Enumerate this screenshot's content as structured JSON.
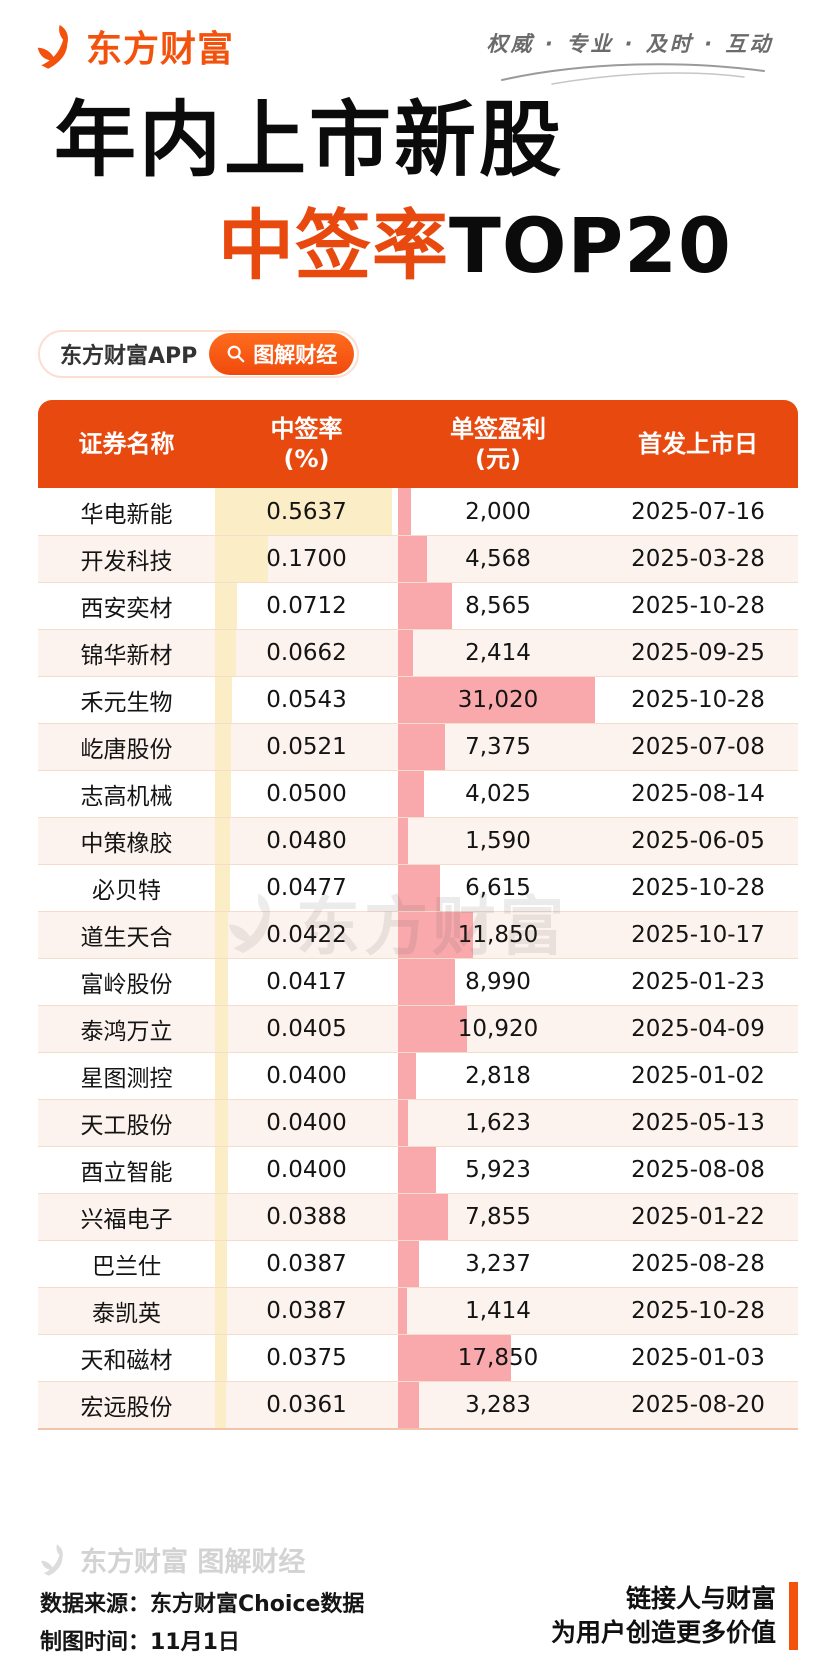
{
  "brand": {
    "logo_text": "东方财富",
    "tagline": "权威 · 专业 · 及时 · 互动"
  },
  "title": {
    "line1": "年内上市新股",
    "line2_highlight": "中签率",
    "line2_rest": "TOP20"
  },
  "app_pill": {
    "app_label": "东方财富APP",
    "button_label": "图解财经"
  },
  "table": {
    "headers": [
      {
        "line1": "证券名称",
        "line2": ""
      },
      {
        "line1": "中签率",
        "line2": "(%)"
      },
      {
        "line1": "单签盈利",
        "line2": "(元)"
      },
      {
        "line1": "首发上市日",
        "line2": ""
      }
    ],
    "rate_axis_max": 0.5637,
    "profit_axis_max": 31020,
    "rows": [
      {
        "name": "华电新能",
        "rate": "0.5637",
        "profit": "2,000",
        "date": "2025-07-16",
        "rate_value": 0.5637,
        "profit_value": 2000
      },
      {
        "name": "开发科技",
        "rate": "0.1700",
        "profit": "4,568",
        "date": "2025-03-28",
        "rate_value": 0.17,
        "profit_value": 4568
      },
      {
        "name": "西安奕材",
        "rate": "0.0712",
        "profit": "8,565",
        "date": "2025-10-28",
        "rate_value": 0.0712,
        "profit_value": 8565
      },
      {
        "name": "锦华新材",
        "rate": "0.0662",
        "profit": "2,414",
        "date": "2025-09-25",
        "rate_value": 0.0662,
        "profit_value": 2414
      },
      {
        "name": "禾元生物",
        "rate": "0.0543",
        "profit": "31,020",
        "date": "2025-10-28",
        "rate_value": 0.0543,
        "profit_value": 31020
      },
      {
        "name": "屹唐股份",
        "rate": "0.0521",
        "profit": "7,375",
        "date": "2025-07-08",
        "rate_value": 0.0521,
        "profit_value": 7375
      },
      {
        "name": "志高机械",
        "rate": "0.0500",
        "profit": "4,025",
        "date": "2025-08-14",
        "rate_value": 0.05,
        "profit_value": 4025
      },
      {
        "name": "中策橡胶",
        "rate": "0.0480",
        "profit": "1,590",
        "date": "2025-06-05",
        "rate_value": 0.048,
        "profit_value": 1590
      },
      {
        "name": "必贝特",
        "rate": "0.0477",
        "profit": "6,615",
        "date": "2025-10-28",
        "rate_value": 0.0477,
        "profit_value": 6615
      },
      {
        "name": "道生天合",
        "rate": "0.0422",
        "profit": "11,850",
        "date": "2025-10-17",
        "rate_value": 0.0422,
        "profit_value": 11850
      },
      {
        "name": "富岭股份",
        "rate": "0.0417",
        "profit": "8,990",
        "date": "2025-01-23",
        "rate_value": 0.0417,
        "profit_value": 8990
      },
      {
        "name": "泰鸿万立",
        "rate": "0.0405",
        "profit": "10,920",
        "date": "2025-04-09",
        "rate_value": 0.0405,
        "profit_value": 10920
      },
      {
        "name": "星图测控",
        "rate": "0.0400",
        "profit": "2,818",
        "date": "2025-01-02",
        "rate_value": 0.04,
        "profit_value": 2818
      },
      {
        "name": "天工股份",
        "rate": "0.0400",
        "profit": "1,623",
        "date": "2025-05-13",
        "rate_value": 0.04,
        "profit_value": 1623
      },
      {
        "name": "酉立智能",
        "rate": "0.0400",
        "profit": "5,923",
        "date": "2025-08-08",
        "rate_value": 0.04,
        "profit_value": 5923
      },
      {
        "name": "兴福电子",
        "rate": "0.0388",
        "profit": "7,855",
        "date": "2025-01-22",
        "rate_value": 0.0388,
        "profit_value": 7855
      },
      {
        "name": "巴兰仕",
        "rate": "0.0387",
        "profit": "3,237",
        "date": "2025-08-28",
        "rate_value": 0.0387,
        "profit_value": 3237
      },
      {
        "name": "泰凯英",
        "rate": "0.0387",
        "profit": "1,414",
        "date": "2025-10-28",
        "rate_value": 0.0387,
        "profit_value": 1414
      },
      {
        "name": "天和磁材",
        "rate": "0.0375",
        "profit": "17,850",
        "date": "2025-01-03",
        "rate_value": 0.0375,
        "profit_value": 17850
      },
      {
        "name": "宏远股份",
        "rate": "0.0361",
        "profit": "3,283",
        "date": "2025-08-20",
        "rate_value": 0.0361,
        "profit_value": 3283
      }
    ]
  },
  "watermark": {
    "table_text": "东方财富",
    "footer_text": "东方财富 图解财经"
  },
  "footer": {
    "source_line": "数据来源：东方财富Choice数据",
    "time_line": "制图时间：11月1日",
    "slogan_line1": "链接人与财富",
    "slogan_line2": "为用户创造更多价值"
  },
  "colors": {
    "accent": "#E8490F",
    "brand_logo": "#F3520D",
    "bar_yellow": "#FBEDC6",
    "bar_pink": "#F9A9AC",
    "row_alt_bg": "#FDF3EE",
    "row_divider": "#F6DCCB",
    "table_bottom_border": "#F0C5AB"
  },
  "chart_data": {
    "type": "table",
    "title": "年内上市新股 中签率TOP20",
    "columns": [
      "证券名称",
      "中签率(%)",
      "单签盈利(元)",
      "首发上市日"
    ],
    "rows": [
      [
        "华电新能",
        0.5637,
        2000,
        "2025-07-16"
      ],
      [
        "开发科技",
        0.17,
        4568,
        "2025-03-28"
      ],
      [
        "西安奕材",
        0.0712,
        8565,
        "2025-10-28"
      ],
      [
        "锦华新材",
        0.0662,
        2414,
        "2025-09-25"
      ],
      [
        "禾元生物",
        0.0543,
        31020,
        "2025-10-28"
      ],
      [
        "屹唐股份",
        0.0521,
        7375,
        "2025-07-08"
      ],
      [
        "志高机械",
        0.05,
        4025,
        "2025-08-14"
      ],
      [
        "中策橡胶",
        0.048,
        1590,
        "2025-06-05"
      ],
      [
        "必贝特",
        0.0477,
        6615,
        "2025-10-28"
      ],
      [
        "道生天合",
        0.0422,
        11850,
        "2025-10-17"
      ],
      [
        "富岭股份",
        0.0417,
        8990,
        "2025-01-23"
      ],
      [
        "泰鸿万立",
        0.0405,
        10920,
        "2025-04-09"
      ],
      [
        "星图测控",
        0.04,
        2818,
        "2025-01-02"
      ],
      [
        "天工股份",
        0.04,
        1623,
        "2025-05-13"
      ],
      [
        "酉立智能",
        0.04,
        5923,
        "2025-08-08"
      ],
      [
        "兴福电子",
        0.0388,
        7855,
        "2025-01-22"
      ],
      [
        "巴兰仕",
        0.0387,
        3237,
        "2025-08-28"
      ],
      [
        "泰凯英",
        0.0387,
        1414,
        "2025-10-28"
      ],
      [
        "天和磁材",
        0.0375,
        17850,
        "2025-01-03"
      ],
      [
        "宏远股份",
        0.0361,
        3283,
        "2025-08-20"
      ]
    ],
    "bar_columns": {
      "中签率(%)": {
        "axis_max": 0.5637,
        "bar_color": "#FBEDC6"
      },
      "单签盈利(元)": {
        "axis_max": 31020,
        "bar_color": "#F9A9AC"
      }
    },
    "legend_position": "none",
    "grid": false
  }
}
